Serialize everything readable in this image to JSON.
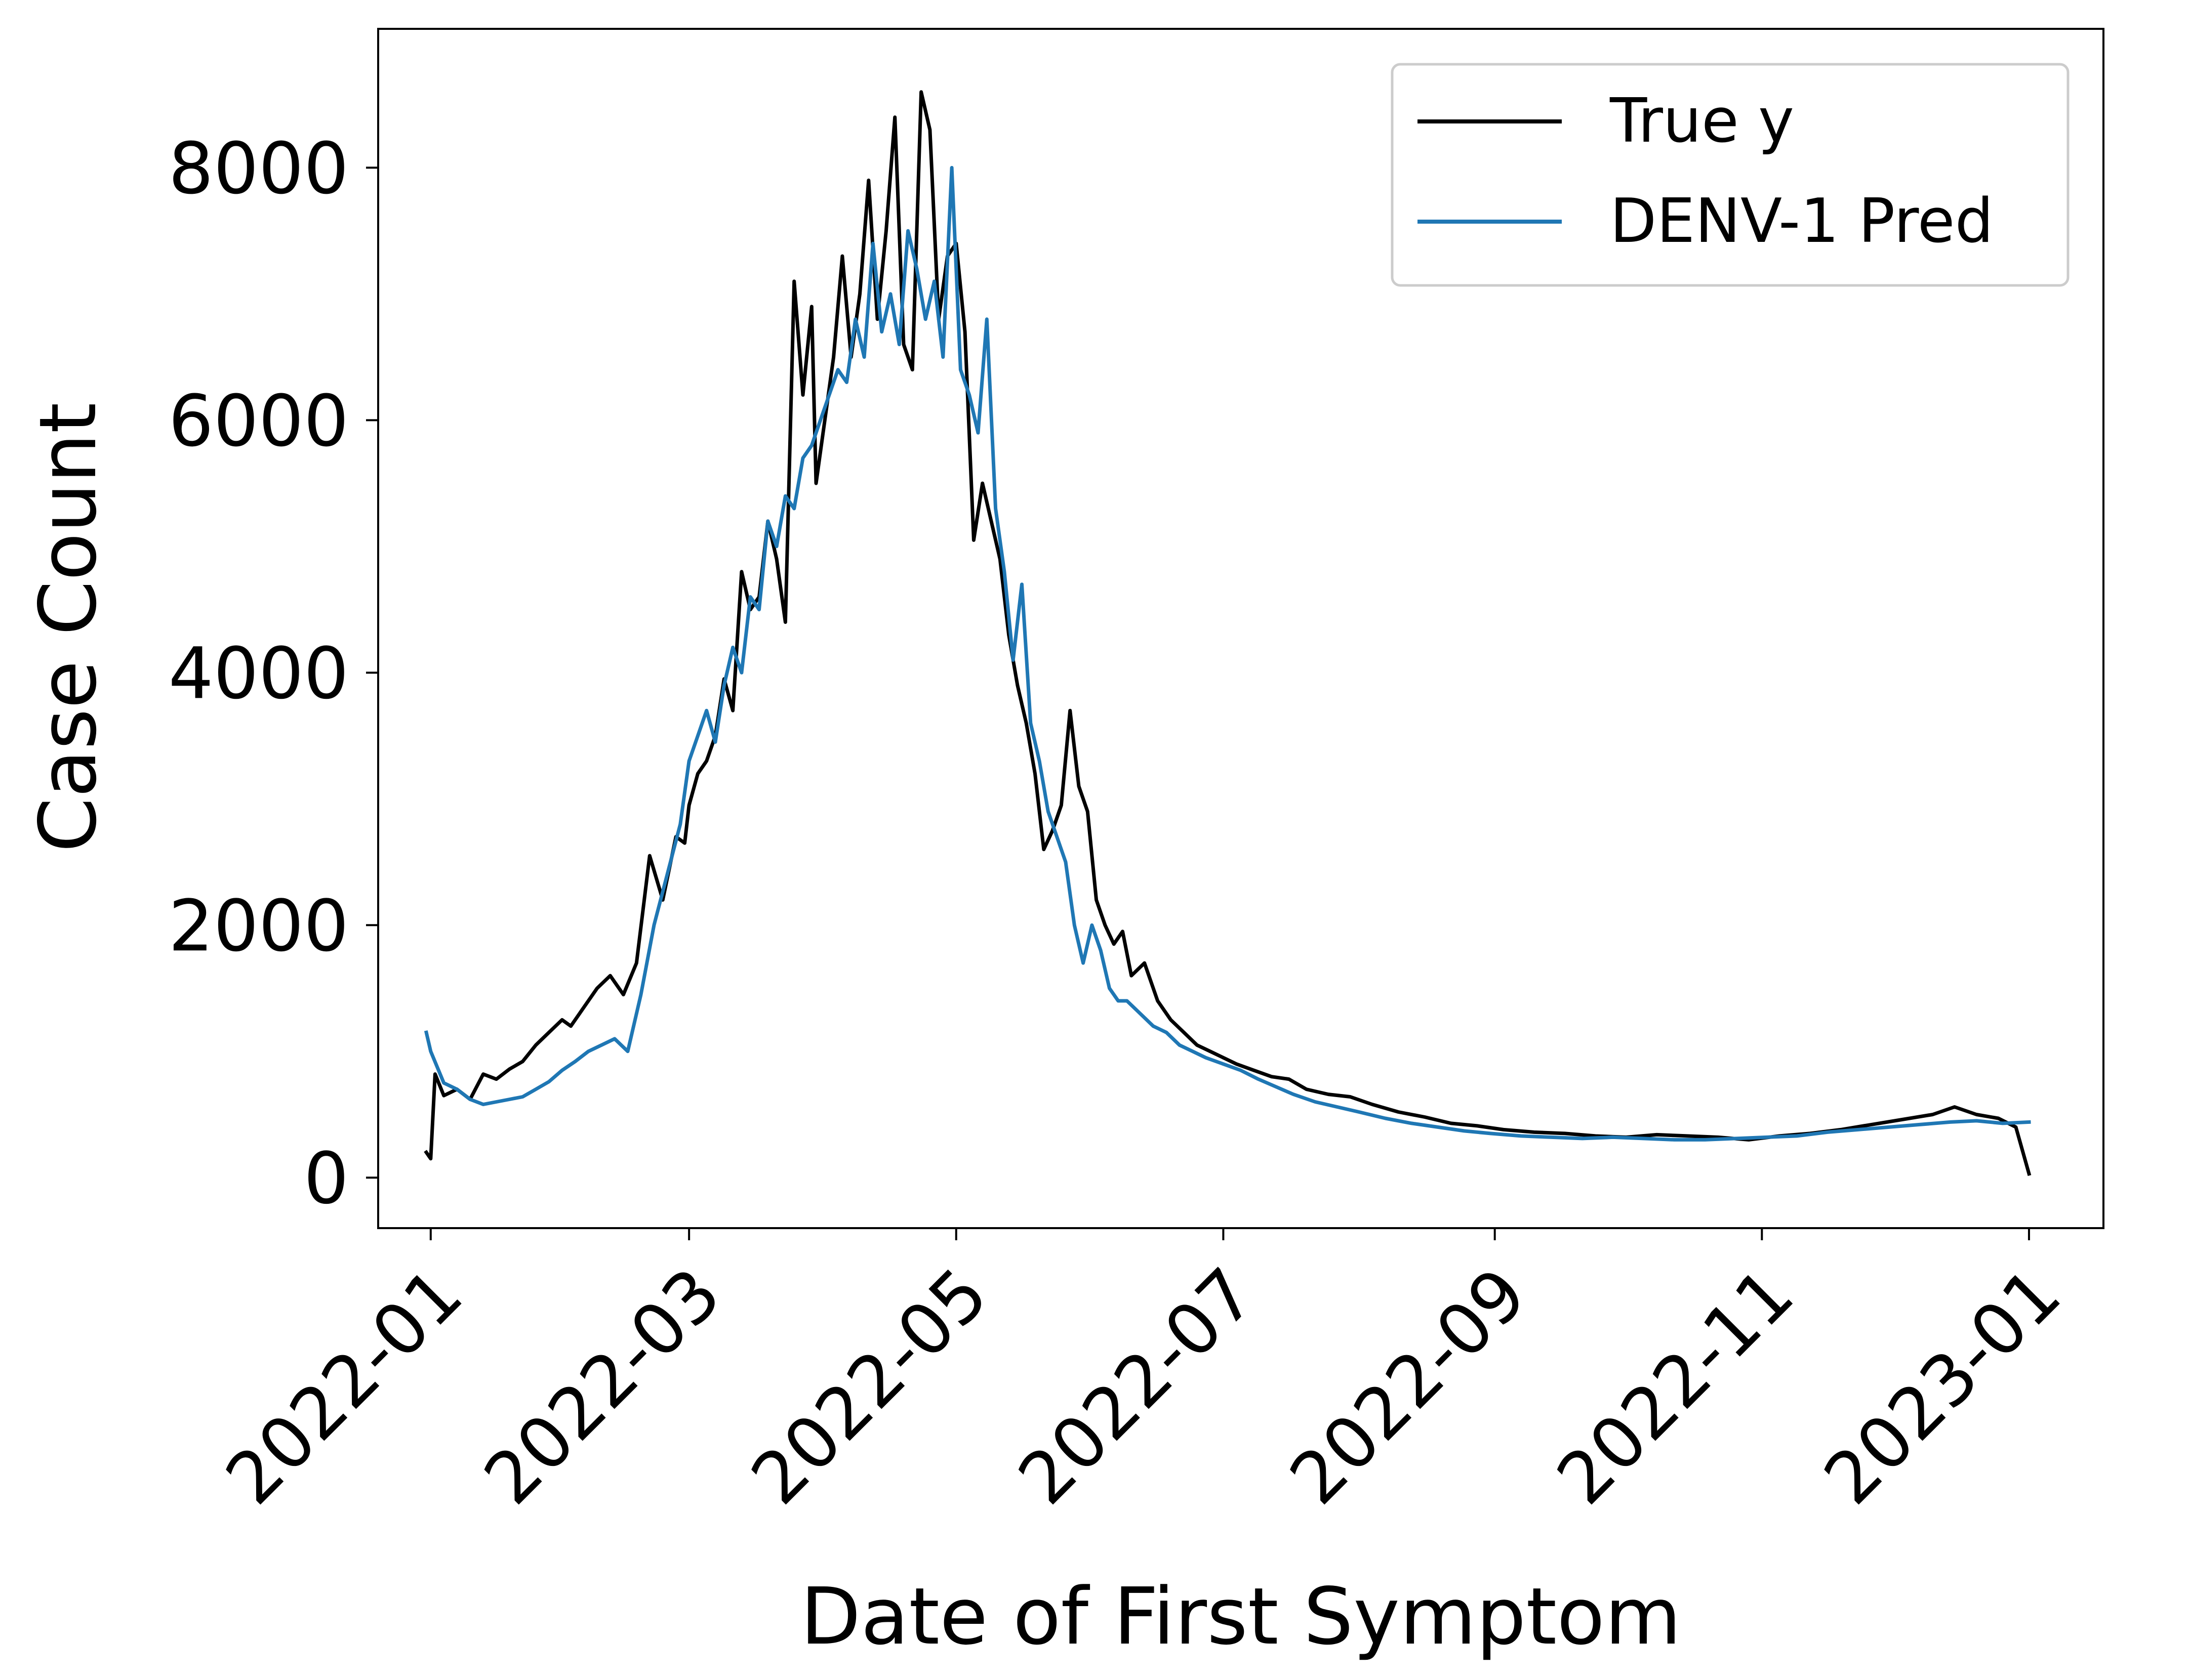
{
  "chart_data": {
    "type": "line",
    "title": "",
    "xlabel": "Date of First Symptom",
    "ylabel": "Case Count",
    "x_ticks": [
      "2022-01-01",
      "2022-03-01",
      "2022-05-01",
      "2022-07-01",
      "2022-09-01",
      "2022-11-01",
      "2023-01-01"
    ],
    "x_tick_labels": [
      "2022-01",
      "2022-03",
      "2022-05",
      "2022-07",
      "2022-09",
      "2022-11",
      "2023-01"
    ],
    "y_ticks": [
      0,
      2000,
      4000,
      6000,
      8000
    ],
    "y_tick_labels": [
      "0",
      "2000",
      "4000",
      "6000",
      "8000"
    ],
    "xlim": [
      "2021-12-20",
      "2023-01-18"
    ],
    "ylim": [
      -400,
      9100
    ],
    "grid": false,
    "legend": "top-right",
    "series": [
      {
        "name": "True y",
        "color": "#000000",
        "x": [
          "2021-12-31",
          "2022-01-01",
          "2022-01-02",
          "2022-01-04",
          "2022-01-07",
          "2022-01-10",
          "2022-01-13",
          "2022-01-16",
          "2022-01-19",
          "2022-01-22",
          "2022-01-25",
          "2022-01-28",
          "2022-01-31",
          "2022-02-02",
          "2022-02-05",
          "2022-02-08",
          "2022-02-11",
          "2022-02-14",
          "2022-02-17",
          "2022-02-20",
          "2022-02-23",
          "2022-02-26",
          "2022-02-28",
          "2022-03-01",
          "2022-03-03",
          "2022-03-05",
          "2022-03-07",
          "2022-03-09",
          "2022-03-11",
          "2022-03-13",
          "2022-03-15",
          "2022-03-17",
          "2022-03-19",
          "2022-03-21",
          "2022-03-23",
          "2022-03-25",
          "2022-03-27",
          "2022-03-29",
          "2022-03-30",
          "2022-04-01",
          "2022-04-03",
          "2022-04-05",
          "2022-04-07",
          "2022-04-09",
          "2022-04-11",
          "2022-04-13",
          "2022-04-15",
          "2022-04-17",
          "2022-04-19",
          "2022-04-21",
          "2022-04-23",
          "2022-04-25",
          "2022-04-27",
          "2022-04-29",
          "2022-05-01",
          "2022-05-03",
          "2022-05-05",
          "2022-05-07",
          "2022-05-09",
          "2022-05-11",
          "2022-05-13",
          "2022-05-15",
          "2022-05-17",
          "2022-05-19",
          "2022-05-21",
          "2022-05-23",
          "2022-05-25",
          "2022-05-27",
          "2022-05-29",
          "2022-05-31",
          "2022-06-02",
          "2022-06-04",
          "2022-06-06",
          "2022-06-08",
          "2022-06-10",
          "2022-06-13",
          "2022-06-16",
          "2022-06-19",
          "2022-06-22",
          "2022-06-25",
          "2022-06-28",
          "2022-07-01",
          "2022-07-04",
          "2022-07-08",
          "2022-07-12",
          "2022-07-16",
          "2022-07-20",
          "2022-07-25",
          "2022-07-30",
          "2022-08-04",
          "2022-08-10",
          "2022-08-16",
          "2022-08-22",
          "2022-08-28",
          "2022-09-03",
          "2022-09-10",
          "2022-09-17",
          "2022-09-24",
          "2022-10-01",
          "2022-10-08",
          "2022-10-15",
          "2022-10-22",
          "2022-10-29",
          "2022-11-05",
          "2022-11-12",
          "2022-11-19",
          "2022-11-26",
          "2022-12-03",
          "2022-12-10",
          "2022-12-15",
          "2022-12-20",
          "2022-12-25",
          "2022-12-29",
          "2023-01-01"
        ],
        "values": [
          200,
          150,
          820,
          650,
          700,
          620,
          820,
          780,
          860,
          920,
          1050,
          1150,
          1250,
          1200,
          1350,
          1500,
          1600,
          1450,
          1700,
          2550,
          2200,
          2700,
          2650,
          2950,
          3200,
          3300,
          3500,
          3950,
          3700,
          4800,
          4500,
          4600,
          5200,
          4900,
          4400,
          7100,
          6200,
          6900,
          5500,
          6000,
          6500,
          7300,
          6500,
          7000,
          7900,
          6800,
          7500,
          8400,
          6600,
          6400,
          8600,
          8300,
          6800,
          7300,
          7400,
          6700,
          5050,
          5500,
          5200,
          4900,
          4300,
          3900,
          3600,
          3200,
          2600,
          2750,
          2950,
          3700,
          3100,
          2900,
          2200,
          2000,
          1850,
          1950,
          1600,
          1700,
          1400,
          1250,
          1150,
          1050,
          1000,
          950,
          900,
          850,
          800,
          780,
          700,
          660,
          640,
          580,
          520,
          480,
          430,
          410,
          380,
          360,
          350,
          330,
          320,
          340,
          330,
          320,
          300,
          330,
          350,
          380,
          420,
          460,
          500,
          560,
          500,
          470,
          400,
          30
        ]
      },
      {
        "name": "DENV-1 Pred",
        "color": "#1f77b4",
        "x": [
          "2021-12-31",
          "2022-01-01",
          "2022-01-04",
          "2022-01-07",
          "2022-01-10",
          "2022-01-13",
          "2022-01-16",
          "2022-01-19",
          "2022-01-22",
          "2022-01-25",
          "2022-01-28",
          "2022-01-31",
          "2022-02-03",
          "2022-02-06",
          "2022-02-09",
          "2022-02-12",
          "2022-02-15",
          "2022-02-18",
          "2022-02-21",
          "2022-02-24",
          "2022-02-27",
          "2022-03-01",
          "2022-03-03",
          "2022-03-05",
          "2022-03-07",
          "2022-03-09",
          "2022-03-11",
          "2022-03-13",
          "2022-03-15",
          "2022-03-17",
          "2022-03-19",
          "2022-03-21",
          "2022-03-23",
          "2022-03-25",
          "2022-03-27",
          "2022-03-29",
          "2022-03-31",
          "2022-04-02",
          "2022-04-04",
          "2022-04-06",
          "2022-04-08",
          "2022-04-10",
          "2022-04-12",
          "2022-04-14",
          "2022-04-16",
          "2022-04-18",
          "2022-04-20",
          "2022-04-22",
          "2022-04-24",
          "2022-04-26",
          "2022-04-28",
          "2022-04-30",
          "2022-05-02",
          "2022-05-04",
          "2022-05-06",
          "2022-05-08",
          "2022-05-10",
          "2022-05-12",
          "2022-05-14",
          "2022-05-16",
          "2022-05-18",
          "2022-05-20",
          "2022-05-22",
          "2022-05-24",
          "2022-05-26",
          "2022-05-28",
          "2022-05-30",
          "2022-06-01",
          "2022-06-03",
          "2022-06-05",
          "2022-06-07",
          "2022-06-09",
          "2022-06-12",
          "2022-06-15",
          "2022-06-18",
          "2022-06-21",
          "2022-06-24",
          "2022-06-27",
          "2022-07-01",
          "2022-07-05",
          "2022-07-09",
          "2022-07-13",
          "2022-07-17",
          "2022-07-22",
          "2022-07-27",
          "2022-08-01",
          "2022-08-07",
          "2022-08-13",
          "2022-08-19",
          "2022-08-25",
          "2022-08-31",
          "2022-09-07",
          "2022-09-14",
          "2022-09-21",
          "2022-09-28",
          "2022-10-05",
          "2022-10-12",
          "2022-10-19",
          "2022-10-26",
          "2022-11-02",
          "2022-11-09",
          "2022-11-16",
          "2022-11-23",
          "2022-11-30",
          "2022-12-07",
          "2022-12-14",
          "2022-12-20",
          "2022-12-26",
          "2023-01-01"
        ],
        "values": [
          1150,
          1000,
          750,
          700,
          620,
          580,
          600,
          620,
          640,
          700,
          760,
          850,
          920,
          1000,
          1050,
          1100,
          1000,
          1450,
          2000,
          2400,
          2800,
          3300,
          3500,
          3700,
          3450,
          3900,
          4200,
          4000,
          4600,
          4500,
          5200,
          5000,
          5400,
          5300,
          5700,
          5800,
          6000,
          6200,
          6400,
          6300,
          6800,
          6500,
          7400,
          6700,
          7000,
          6600,
          7500,
          7200,
          6800,
          7100,
          6500,
          8000,
          6400,
          6200,
          5900,
          6800,
          5300,
          4800,
          4100,
          4700,
          3600,
          3300,
          2900,
          2700,
          2500,
          2000,
          1700,
          2000,
          1800,
          1500,
          1400,
          1400,
          1300,
          1200,
          1150,
          1050,
          1000,
          950,
          900,
          850,
          780,
          720,
          660,
          600,
          560,
          520,
          470,
          430,
          400,
          370,
          350,
          330,
          320,
          310,
          320,
          310,
          300,
          300,
          310,
          320,
          330,
          360,
          380,
          400,
          420,
          440,
          450,
          430,
          440
        ]
      }
    ]
  }
}
